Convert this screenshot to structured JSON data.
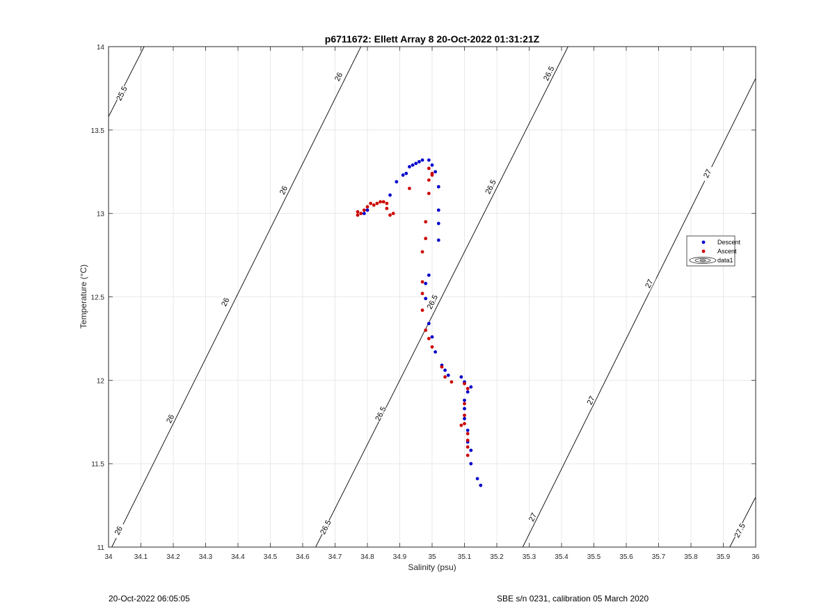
{
  "chart_data": {
    "type": "scatter",
    "title": "p6711672: Ellett Array 8 20-Oct-2022 01:31:21Z",
    "xlabel": "Salinity (psu)",
    "ylabel": "Temperature (°C)",
    "xlim": [
      34,
      36
    ],
    "ylim": [
      11,
      14
    ],
    "grid": true,
    "x_ticks": [
      34,
      34.1,
      34.2,
      34.3,
      34.4,
      34.5,
      34.6,
      34.7,
      34.8,
      34.9,
      35,
      35.1,
      35.2,
      35.3,
      35.4,
      35.5,
      35.6,
      35.7,
      35.8,
      35.9,
      36
    ],
    "x_tick_labels": [
      "34",
      "34.1",
      "34.2",
      "34.3",
      "34.4",
      "34.5",
      "34.6",
      "34.7",
      "34.8",
      "34.9",
      "35",
      "35.1",
      "35.2",
      "35.3",
      "35.4",
      "35.5",
      "35.6",
      "35.7",
      "35.8",
      "35.9",
      "36"
    ],
    "y_ticks": [
      11,
      11.5,
      12,
      12.5,
      13,
      13.5,
      14
    ],
    "y_tick_labels": [
      "11",
      "11.5",
      "12",
      "12.5",
      "13",
      "13.5",
      "14"
    ],
    "legend_position": "right",
    "series": [
      {
        "name": "Descent",
        "color": "#0000cc",
        "points": [
          [
            35.15,
            11.37
          ],
          [
            35.14,
            11.41
          ],
          [
            35.12,
            11.5
          ],
          [
            35.12,
            11.58
          ],
          [
            35.11,
            11.63
          ],
          [
            35.11,
            11.7
          ],
          [
            35.1,
            11.77
          ],
          [
            35.1,
            11.83
          ],
          [
            35.1,
            11.88
          ],
          [
            35.11,
            11.93
          ],
          [
            35.12,
            11.96
          ],
          [
            35.1,
            11.99
          ],
          [
            35.09,
            12.02
          ],
          [
            35.05,
            12.03
          ],
          [
            35.04,
            12.06
          ],
          [
            35.03,
            12.09
          ],
          [
            35.01,
            12.17
          ],
          [
            35,
            12.26
          ],
          [
            34.99,
            12.34
          ],
          [
            34.98,
            12.49
          ],
          [
            34.98,
            12.58
          ],
          [
            34.99,
            12.63
          ],
          [
            35.02,
            12.84
          ],
          [
            35.02,
            12.94
          ],
          [
            35.02,
            13.02
          ],
          [
            35.02,
            13.16
          ],
          [
            35.01,
            13.25
          ],
          [
            35,
            13.29
          ],
          [
            34.99,
            13.32
          ],
          [
            34.97,
            13.32
          ],
          [
            34.96,
            13.31
          ],
          [
            34.95,
            13.3
          ],
          [
            34.94,
            13.29
          ],
          [
            34.93,
            13.28
          ],
          [
            34.92,
            13.24
          ],
          [
            34.91,
            13.23
          ],
          [
            34.89,
            13.19
          ],
          [
            34.87,
            13.11
          ],
          [
            34.8,
            13.02
          ],
          [
            34.79,
            13
          ]
        ]
      },
      {
        "name": "Ascent",
        "color": "#cc0000",
        "points": [
          [
            35.11,
            11.55
          ],
          [
            35.11,
            11.6
          ],
          [
            35.11,
            11.64
          ],
          [
            35.11,
            11.68
          ],
          [
            35.1,
            11.74
          ],
          [
            35.09,
            11.73
          ],
          [
            35.1,
            11.79
          ],
          [
            35.1,
            11.86
          ],
          [
            35.11,
            11.95
          ],
          [
            35.1,
            11.98
          ],
          [
            35.06,
            11.99
          ],
          [
            35.04,
            12.02
          ],
          [
            35.03,
            12.08
          ],
          [
            35,
            12.2
          ],
          [
            34.99,
            12.25
          ],
          [
            34.98,
            12.3
          ],
          [
            34.97,
            12.42
          ],
          [
            34.97,
            12.52
          ],
          [
            34.97,
            12.59
          ],
          [
            34.97,
            12.77
          ],
          [
            34.98,
            12.85
          ],
          [
            34.98,
            12.95
          ],
          [
            34.99,
            13.12
          ],
          [
            34.99,
            13.2
          ],
          [
            35,
            13.23
          ],
          [
            35,
            13.24
          ],
          [
            34.99,
            13.27
          ],
          [
            34.93,
            13.15
          ],
          [
            34.88,
            13
          ],
          [
            34.87,
            12.99
          ],
          [
            34.86,
            13.03
          ],
          [
            34.86,
            13.06
          ],
          [
            34.85,
            13.07
          ],
          [
            34.84,
            13.07
          ],
          [
            34.83,
            13.06
          ],
          [
            34.82,
            13.05
          ],
          [
            34.81,
            13.06
          ],
          [
            34.8,
            13.04
          ],
          [
            34.79,
            13.02
          ],
          [
            34.78,
            13
          ],
          [
            34.77,
            13.01
          ],
          [
            34.77,
            12.99
          ]
        ]
      }
    ],
    "legend_entries": [
      "Descent",
      "Ascent",
      "data1"
    ],
    "contour_series_name": "data1",
    "contours": [
      {
        "label": "25.5",
        "points": [
          [
            34,
            13.58
          ],
          [
            34.11,
            14
          ]
        ],
        "labels_at": [
          [
            34.04,
            13.72
          ]
        ]
      },
      {
        "label": "26",
        "points": [
          [
            34.01,
            11
          ],
          [
            34.78,
            14
          ]
        ],
        "labels_at": [
          [
            34.03,
            11.1
          ],
          [
            34.19,
            11.77
          ],
          [
            34.36,
            12.47
          ],
          [
            34.54,
            13.14
          ],
          [
            34.71,
            13.82
          ]
        ]
      },
      {
        "label": "26.5",
        "points": [
          [
            34.64,
            11
          ],
          [
            35.42,
            14
          ]
        ],
        "labels_at": [
          [
            34.67,
            11.12
          ],
          [
            34.84,
            11.8
          ],
          [
            35,
            12.47
          ],
          [
            35.18,
            13.16
          ],
          [
            35.36,
            13.84
          ]
        ]
      },
      {
        "label": "27",
        "points": [
          [
            35.28,
            11
          ],
          [
            36,
            13.81
          ]
        ],
        "labels_at": [
          [
            35.31,
            11.18
          ],
          [
            35.49,
            11.88
          ],
          [
            35.67,
            12.58
          ],
          [
            35.85,
            13.24
          ]
        ]
      },
      {
        "label": "27.5",
        "points": [
          [
            35.92,
            11
          ],
          [
            36,
            11.3
          ]
        ],
        "labels_at": [
          [
            35.95,
            11.1
          ]
        ]
      }
    ]
  },
  "footer": {
    "timestamp": "20-Oct-2022 06:05:05",
    "instrument": "SBE s/n 0231, calibration 05 March 2020"
  }
}
